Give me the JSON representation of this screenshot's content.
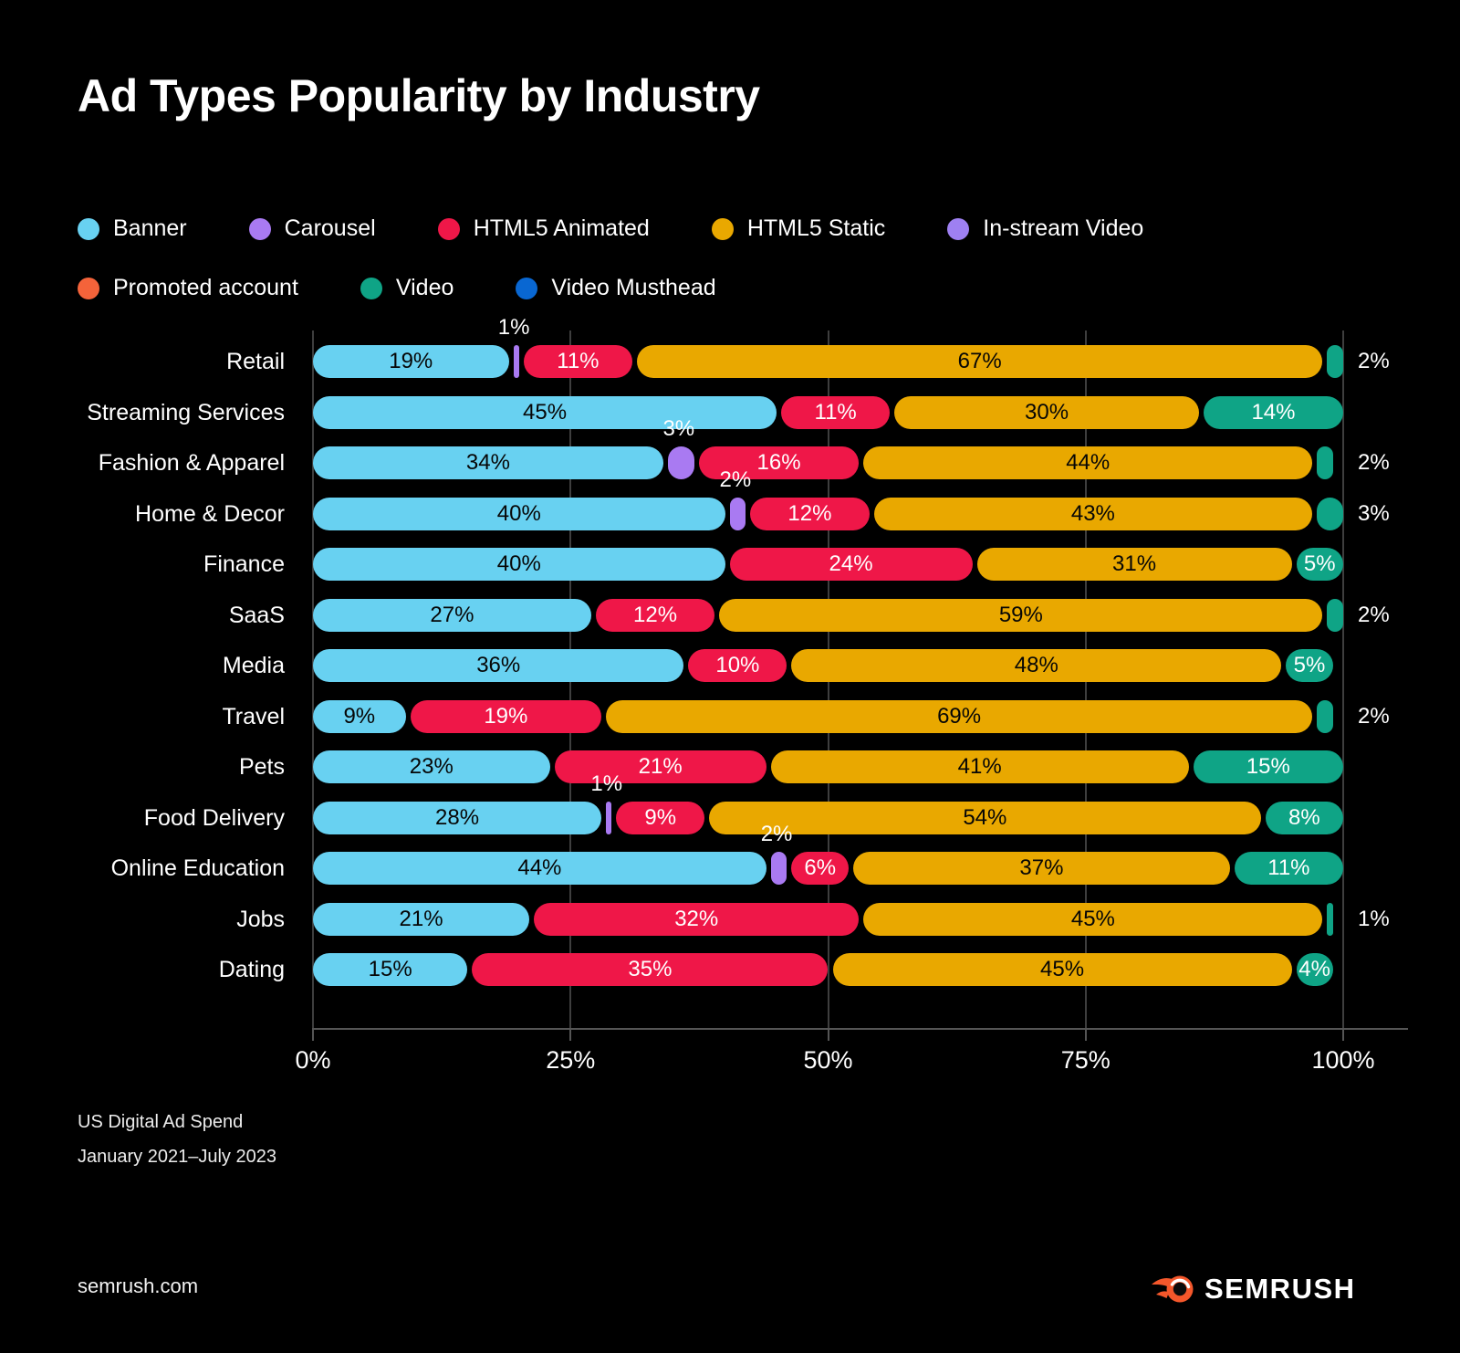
{
  "header": {
    "title": "Ad Types Popularity by Industry"
  },
  "footer": {
    "source_line1": "US Digital Ad Spend",
    "source_line2": "January 2021–July 2023",
    "site": "semrush.com",
    "logo_text": "SEMRUSH",
    "logo_color": "#F4572B"
  },
  "chart_data": {
    "type": "bar",
    "variant": "horizontal-stacked",
    "unit": "%",
    "background": "#000000",
    "grid_color": "#3e3e3e",
    "axis_color": "#555555",
    "x_axis": {
      "min": 0,
      "max": 100,
      "tick_values": [
        0,
        25,
        50,
        75,
        100
      ],
      "tick_labels": [
        "0%",
        "25%",
        "50%",
        "75%",
        "100%"
      ]
    },
    "series": {
      "banner": {
        "label": "Banner",
        "color": "#68D1F1",
        "text_color": "#060606"
      },
      "carousel": {
        "label": "Carousel",
        "color": "#A97AF2",
        "text_color": "#FFFFFF"
      },
      "animated": {
        "label": "HTML5 Animated",
        "color": "#EF1748",
        "text_color": "#FFFFFF"
      },
      "static": {
        "label": "HTML5 Static",
        "color": "#E9A800",
        "text_color": "#060606"
      },
      "instream": {
        "label": "In-stream Video",
        "color": "#9E80F2",
        "text_color": "#FFFFFF"
      },
      "promoted": {
        "label": "Promoted account",
        "color": "#F4633A",
        "text_color": "#FFFFFF"
      },
      "video": {
        "label": "Video",
        "color": "#0FA486",
        "text_color": "#FFFFFF"
      },
      "musthead": {
        "label": "Video Musthead",
        "color": "#0967D2",
        "text_color": "#FFFFFF"
      }
    },
    "legend_rows": [
      [
        "banner",
        "carousel",
        "animated",
        "static",
        "instream"
      ],
      [
        "promoted",
        "video",
        "musthead"
      ]
    ],
    "rows": [
      {
        "industry": "Retail",
        "segments": [
          {
            "series": "banner",
            "value": 19,
            "label": "19%",
            "label_pos": "inside"
          },
          {
            "series": "carousel",
            "value": 1,
            "label": "1%",
            "label_pos": "above"
          },
          {
            "series": "animated",
            "value": 11,
            "label": "11%",
            "label_pos": "inside"
          },
          {
            "series": "static",
            "value": 67,
            "label": "67%",
            "label_pos": "inside"
          },
          {
            "series": "video",
            "value": 2,
            "label": "2%",
            "label_pos": "right"
          }
        ]
      },
      {
        "industry": "Streaming Services",
        "segments": [
          {
            "series": "banner",
            "value": 45,
            "label": "45%",
            "label_pos": "inside"
          },
          {
            "series": "animated",
            "value": 11,
            "label": "11%",
            "label_pos": "inside"
          },
          {
            "series": "static",
            "value": 30,
            "label": "30%",
            "label_pos": "inside"
          },
          {
            "series": "video",
            "value": 14,
            "label": "14%",
            "label_pos": "inside"
          }
        ]
      },
      {
        "industry": "Fashion & Apparel",
        "segments": [
          {
            "series": "banner",
            "value": 34,
            "label": "34%",
            "label_pos": "inside"
          },
          {
            "series": "carousel",
            "value": 3,
            "label": "3%",
            "label_pos": "above"
          },
          {
            "series": "animated",
            "value": 16,
            "label": "16%",
            "label_pos": "inside"
          },
          {
            "series": "static",
            "value": 44,
            "label": "44%",
            "label_pos": "inside"
          },
          {
            "series": "video",
            "value": 2,
            "label": "2%",
            "label_pos": "right"
          }
        ]
      },
      {
        "industry": "Home & Decor",
        "segments": [
          {
            "series": "banner",
            "value": 40,
            "label": "40%",
            "label_pos": "inside"
          },
          {
            "series": "carousel",
            "value": 2,
            "label": "2%",
            "label_pos": "above"
          },
          {
            "series": "animated",
            "value": 12,
            "label": "12%",
            "label_pos": "inside"
          },
          {
            "series": "static",
            "value": 43,
            "label": "43%",
            "label_pos": "inside"
          },
          {
            "series": "video",
            "value": 3,
            "label": "3%",
            "label_pos": "right"
          }
        ]
      },
      {
        "industry": "Finance",
        "segments": [
          {
            "series": "banner",
            "value": 40,
            "label": "40%",
            "label_pos": "inside"
          },
          {
            "series": "animated",
            "value": 24,
            "label": "24%",
            "label_pos": "inside"
          },
          {
            "series": "static",
            "value": 31,
            "label": "31%",
            "label_pos": "inside"
          },
          {
            "series": "video",
            "value": 5,
            "label": "5%",
            "label_pos": "inside"
          }
        ]
      },
      {
        "industry": "SaaS",
        "segments": [
          {
            "series": "banner",
            "value": 27,
            "label": "27%",
            "label_pos": "inside"
          },
          {
            "series": "animated",
            "value": 12,
            "label": "12%",
            "label_pos": "inside"
          },
          {
            "series": "static",
            "value": 59,
            "label": "59%",
            "label_pos": "inside"
          },
          {
            "series": "video",
            "value": 2,
            "label": "2%",
            "label_pos": "right"
          }
        ]
      },
      {
        "industry": "Media",
        "segments": [
          {
            "series": "banner",
            "value": 36,
            "label": "36%",
            "label_pos": "inside"
          },
          {
            "series": "animated",
            "value": 10,
            "label": "10%",
            "label_pos": "inside"
          },
          {
            "series": "static",
            "value": 48,
            "label": "48%",
            "label_pos": "inside"
          },
          {
            "series": "video",
            "value": 5,
            "label": "5%",
            "label_pos": "inside"
          }
        ]
      },
      {
        "industry": "Travel",
        "segments": [
          {
            "series": "banner",
            "value": 9,
            "label": "9%",
            "label_pos": "inside"
          },
          {
            "series": "animated",
            "value": 19,
            "label": "19%",
            "label_pos": "inside"
          },
          {
            "series": "static",
            "value": 69,
            "label": "69%",
            "label_pos": "inside"
          },
          {
            "series": "video",
            "value": 2,
            "label": "2%",
            "label_pos": "right"
          }
        ]
      },
      {
        "industry": "Pets",
        "segments": [
          {
            "series": "banner",
            "value": 23,
            "label": "23%",
            "label_pos": "inside"
          },
          {
            "series": "animated",
            "value": 21,
            "label": "21%",
            "label_pos": "inside"
          },
          {
            "series": "static",
            "value": 41,
            "label": "41%",
            "label_pos": "inside"
          },
          {
            "series": "video",
            "value": 15,
            "label": "15%",
            "label_pos": "inside"
          }
        ]
      },
      {
        "industry": "Food Delivery",
        "segments": [
          {
            "series": "banner",
            "value": 28,
            "label": "28%",
            "label_pos": "inside"
          },
          {
            "series": "carousel",
            "value": 1,
            "label": "1%",
            "label_pos": "above"
          },
          {
            "series": "animated",
            "value": 9,
            "label": "9%",
            "label_pos": "inside"
          },
          {
            "series": "static",
            "value": 54,
            "label": "54%",
            "label_pos": "inside"
          },
          {
            "series": "video",
            "value": 8,
            "label": "8%",
            "label_pos": "inside"
          }
        ]
      },
      {
        "industry": "Online Education",
        "segments": [
          {
            "series": "banner",
            "value": 44,
            "label": "44%",
            "label_pos": "inside"
          },
          {
            "series": "carousel",
            "value": 2,
            "label": "2%",
            "label_pos": "above"
          },
          {
            "series": "animated",
            "value": 6,
            "label": "6%",
            "label_pos": "inside"
          },
          {
            "series": "static",
            "value": 37,
            "label": "37%",
            "label_pos": "inside"
          },
          {
            "series": "video",
            "value": 11,
            "label": "11%",
            "label_pos": "inside"
          }
        ]
      },
      {
        "industry": "Jobs",
        "segments": [
          {
            "series": "banner",
            "value": 21,
            "label": "21%",
            "label_pos": "inside"
          },
          {
            "series": "animated",
            "value": 32,
            "label": "32%",
            "label_pos": "inside"
          },
          {
            "series": "static",
            "value": 45,
            "label": "45%",
            "label_pos": "inside"
          },
          {
            "series": "video",
            "value": 1,
            "label": "1%",
            "label_pos": "right"
          }
        ]
      },
      {
        "industry": "Dating",
        "segments": [
          {
            "series": "banner",
            "value": 15,
            "label": "15%",
            "label_pos": "inside"
          },
          {
            "series": "animated",
            "value": 35,
            "label": "35%",
            "label_pos": "inside"
          },
          {
            "series": "static",
            "value": 45,
            "label": "45%",
            "label_pos": "inside"
          },
          {
            "series": "video",
            "value": 4,
            "label": "4%",
            "label_pos": "inside"
          }
        ]
      }
    ]
  }
}
